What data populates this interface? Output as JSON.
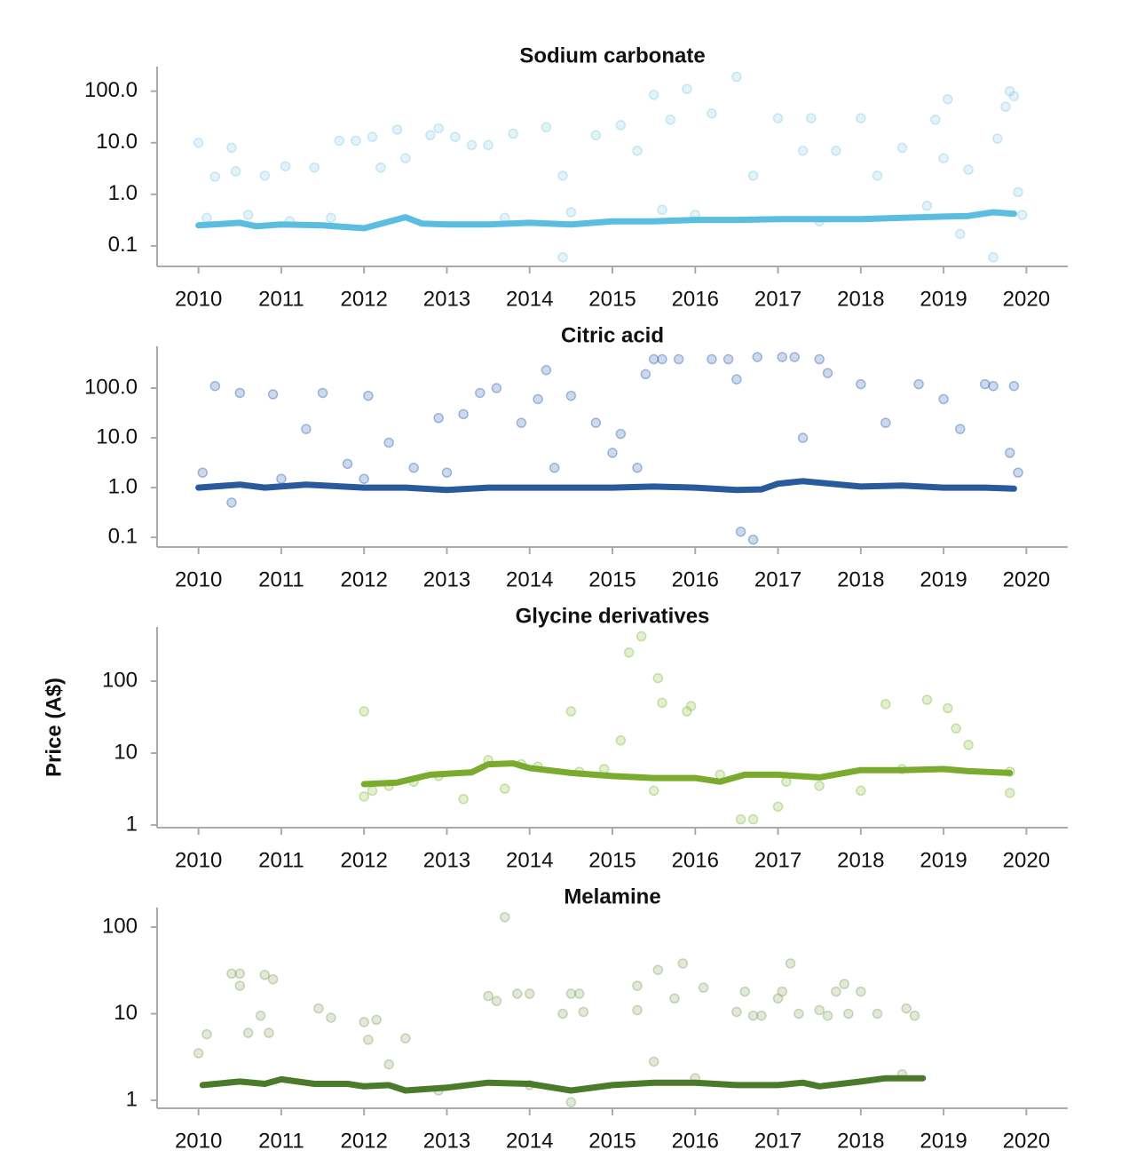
{
  "chart_data": [
    {
      "type": "scatter",
      "title": "Sodium carbonate",
      "log_scale": true,
      "color": "#8ecfe6",
      "trend_color": "#5bbde0",
      "xlim": [
        2009.5,
        2020.5
      ],
      "xticks": [
        2010,
        2011,
        2012,
        2013,
        2014,
        2015,
        2016,
        2017,
        2018,
        2019,
        2020
      ],
      "ylim": [
        0.04,
        300
      ],
      "yticks": [
        {
          "value": 100,
          "label": "100.0"
        },
        {
          "value": 10,
          "label": "10.0"
        },
        {
          "value": 1,
          "label": "1.0"
        },
        0.1
      ],
      "x": [
        2010.0,
        2010.1,
        2010.2,
        2010.4,
        2010.45,
        2010.6,
        2010.8,
        2011.05,
        2011.1,
        2011.4,
        2011.6,
        2011.7,
        2011.9,
        2012.1,
        2012.2,
        2012.4,
        2012.5,
        2012.8,
        2012.9,
        2013.1,
        2013.3,
        2013.5,
        2013.8,
        2014.2,
        2014.4,
        2014.4,
        2014.5,
        2014.8,
        2015.1,
        2015.3,
        2015.5,
        2015.6,
        2015.7,
        2015.9,
        2016.2,
        2016.5,
        2016.7,
        2017.0,
        2017.3,
        2017.4,
        2017.7,
        2018.0,
        2018.2,
        2018.5,
        2018.8,
        2018.9,
        2019.0,
        2019.05,
        2019.2,
        2019.3,
        2019.6,
        2019.65,
        2019.75,
        2019.8,
        2019.85,
        2019.9,
        2019.95,
        2013.7,
        2016.0,
        2017.5
      ],
      "values": [
        10,
        0.35,
        2.2,
        8,
        2.8,
        0.4,
        2.3,
        3.5,
        0.3,
        3.3,
        0.35,
        11,
        11,
        13,
        3.3,
        18,
        5,
        14,
        19,
        13,
        9,
        9,
        15,
        20,
        2.3,
        0.06,
        0.45,
        14,
        22,
        7,
        85,
        0.5,
        28,
        110,
        37,
        190,
        2.3,
        30,
        7,
        30,
        7,
        30,
        2.3,
        8,
        0.6,
        28,
        5,
        70,
        0.17,
        3,
        0.06,
        12,
        50,
        100,
        80,
        1.1,
        0.4,
        0.35,
        0.4,
        0.3
      ],
      "trend_x": [
        2010,
        2010.5,
        2010.7,
        2011,
        2011.5,
        2012,
        2012.5,
        2012.7,
        2013,
        2013.5,
        2014,
        2014.5,
        2015,
        2015.5,
        2016,
        2016.5,
        2017,
        2017.5,
        2018,
        2018.5,
        2019,
        2019.3,
        2019.6,
        2019.85
      ],
      "trend_values": [
        0.25,
        0.28,
        0.24,
        0.26,
        0.25,
        0.22,
        0.36,
        0.27,
        0.26,
        0.26,
        0.28,
        0.26,
        0.3,
        0.3,
        0.32,
        0.32,
        0.33,
        0.33,
        0.33,
        0.35,
        0.37,
        0.38,
        0.45,
        0.42
      ]
    },
    {
      "type": "scatter",
      "title": "Citric acid",
      "log_scale": true,
      "color": "#3a6cb5",
      "trend_color": "#2a5a9e",
      "xlim": [
        2009.5,
        2020.5
      ],
      "xticks": [
        2010,
        2011,
        2012,
        2013,
        2014,
        2015,
        2016,
        2017,
        2018,
        2019,
        2020
      ],
      "ylim": [
        0.064,
        690
      ],
      "yticks": [
        {
          "value": 100,
          "label": "100.0"
        },
        {
          "value": 10,
          "label": "10.0"
        },
        {
          "value": 1,
          "label": "1.0"
        },
        0.1
      ],
      "x": [
        2010.05,
        2010.2,
        2010.5,
        2010.4,
        2010.9,
        2011.3,
        2011.5,
        2011.8,
        2012.05,
        2012.3,
        2012.6,
        2012.9,
        2013.2,
        2013.4,
        2013.6,
        2013.9,
        2014.1,
        2014.2,
        2014.5,
        2014.8,
        2015.1,
        2015.3,
        2015.4,
        2015.5,
        2015.6,
        2015.8,
        2016.2,
        2016.4,
        2016.5,
        2016.55,
        2016.7,
        2016.75,
        2017.05,
        2017.2,
        2017.5,
        2017.6,
        2017.3,
        2018.0,
        2018.3,
        2018.7,
        2019.0,
        2019.2,
        2019.5,
        2019.6,
        2019.8,
        2019.85,
        2019.9,
        2015.0,
        2014.3,
        2013.0,
        2012.0,
        2011.0
      ],
      "values": [
        2,
        110,
        80,
        0.5,
        75,
        15,
        80,
        3,
        70,
        8,
        2.5,
        25,
        30,
        80,
        100,
        20,
        60,
        230,
        70,
        20,
        12,
        2.5,
        190,
        380,
        380,
        380,
        380,
        380,
        150,
        0.13,
        0.09,
        420,
        420,
        420,
        380,
        200,
        10,
        120,
        20,
        120,
        60,
        15,
        120,
        110,
        5,
        110,
        2,
        5,
        2.5,
        2,
        1.5,
        1.5
      ],
      "trend_x": [
        2010,
        2010.5,
        2010.8,
        2011.3,
        2012,
        2012.5,
        2013,
        2013.5,
        2014,
        2015,
        2015.5,
        2016,
        2016.5,
        2016.8,
        2017,
        2017.3,
        2018,
        2018.5,
        2019,
        2019.5,
        2019.85
      ],
      "trend_values": [
        1.0,
        1.15,
        1.0,
        1.15,
        1.0,
        1.0,
        0.9,
        1.0,
        1.0,
        1.0,
        1.05,
        1.0,
        0.9,
        0.92,
        1.2,
        1.35,
        1.05,
        1.1,
        1.0,
        1.0,
        0.95
      ]
    },
    {
      "type": "scatter",
      "title": "Glycine derivatives",
      "ylabel": "Price (A$)",
      "log_scale": true,
      "color": "#8fbf4a",
      "trend_color": "#7aaa2e",
      "xlim": [
        2009.5,
        2020.5
      ],
      "xticks": [
        2010,
        2011,
        2012,
        2013,
        2014,
        2015,
        2016,
        2017,
        2018,
        2019,
        2020
      ],
      "ylim": [
        0.92,
        566
      ],
      "yticks": [
        100,
        10,
        1
      ],
      "x": [
        2012.0,
        2012.0,
        2012.1,
        2012.3,
        2012.6,
        2012.9,
        2013.2,
        2013.5,
        2013.7,
        2014.1,
        2014.5,
        2014.6,
        2014.9,
        2015.1,
        2015.2,
        2015.35,
        2015.55,
        2015.6,
        2015.9,
        2015.95,
        2016.3,
        2016.55,
        2016.7,
        2017.0,
        2017.1,
        2017.5,
        2018.0,
        2018.3,
        2018.5,
        2018.8,
        2019.05,
        2019.15,
        2019.3,
        2019.8,
        2019.8,
        2013.9,
        2015.5
      ],
      "values": [
        38,
        2.5,
        3,
        3.5,
        4,
        4.8,
        2.3,
        8,
        3.2,
        6.5,
        38,
        5.5,
        6,
        15,
        250,
        420,
        110,
        50,
        38,
        45,
        5,
        1.2,
        1.2,
        1.8,
        4,
        3.5,
        3,
        48,
        6,
        55,
        42,
        22,
        13,
        2.8,
        5.5,
        7,
        3
      ],
      "trend_x": [
        2012,
        2012.4,
        2012.8,
        2013.3,
        2013.5,
        2013.8,
        2014,
        2014.5,
        2015,
        2015.5,
        2016,
        2016.3,
        2016.6,
        2017,
        2017.5,
        2018,
        2018.5,
        2019,
        2019.3,
        2019.8
      ],
      "trend_values": [
        3.7,
        3.9,
        5.0,
        5.4,
        7.0,
        7.2,
        6.2,
        5.3,
        4.8,
        4.5,
        4.5,
        4.0,
        5.0,
        5.0,
        4.6,
        5.8,
        5.8,
        6.0,
        5.6,
        5.3
      ]
    },
    {
      "type": "scatter",
      "title": "Melamine",
      "log_scale": true,
      "color": "#8aa66a",
      "trend_color": "#4a7a2a",
      "xlim": [
        2009.5,
        2020.5
      ],
      "xticks": [
        2010,
        2011,
        2012,
        2013,
        2014,
        2015,
        2016,
        2017,
        2018,
        2019,
        2020
      ],
      "ylim": [
        0.81,
        168
      ],
      "yticks": [
        100,
        10,
        1
      ],
      "x": [
        2010.0,
        2010.1,
        2010.4,
        2010.5,
        2010.5,
        2010.6,
        2010.75,
        2010.8,
        2010.9,
        2010.85,
        2011.45,
        2011.6,
        2012.0,
        2012.05,
        2012.15,
        2012.3,
        2012.5,
        2013.7,
        2013.5,
        2013.6,
        2013.85,
        2014.0,
        2014.4,
        2014.5,
        2014.6,
        2014.65,
        2014.5,
        2015.3,
        2015.3,
        2015.5,
        2015.55,
        2015.75,
        2015.85,
        2016.1,
        2016.5,
        2016.6,
        2016.7,
        2016.8,
        2017.0,
        2017.05,
        2017.15,
        2017.25,
        2017.5,
        2017.6,
        2017.7,
        2017.8,
        2017.85,
        2018.0,
        2018.2,
        2018.5,
        2018.55,
        2018.65,
        2014.0,
        2016.0,
        2012.9
      ],
      "values": [
        3.5,
        5.8,
        29,
        29,
        21,
        6,
        9.5,
        28,
        25,
        6,
        11.5,
        9,
        8,
        5,
        8.5,
        2.6,
        5.2,
        130,
        16,
        14,
        17,
        17,
        10,
        17,
        17,
        10.5,
        0.95,
        21,
        11,
        2.8,
        32,
        15,
        38,
        20,
        10.5,
        18,
        9.5,
        9.5,
        15,
        18,
        38,
        10,
        11,
        9.5,
        18,
        22,
        10,
        18,
        10,
        2,
        11.5,
        9.5,
        1.5,
        1.8,
        1.3
      ],
      "trend_x": [
        2010.05,
        2010.5,
        2010.8,
        2011,
        2011.4,
        2011.8,
        2012,
        2012.3,
        2012.5,
        2013,
        2013.5,
        2014,
        2014.5,
        2015,
        2015.5,
        2016,
        2016.5,
        2017,
        2017.3,
        2017.5,
        2018,
        2018.3,
        2018.75
      ],
      "trend_values": [
        1.5,
        1.65,
        1.55,
        1.75,
        1.55,
        1.55,
        1.45,
        1.5,
        1.3,
        1.4,
        1.6,
        1.55,
        1.3,
        1.5,
        1.6,
        1.6,
        1.5,
        1.5,
        1.6,
        1.45,
        1.65,
        1.8,
        1.8
      ]
    }
  ]
}
